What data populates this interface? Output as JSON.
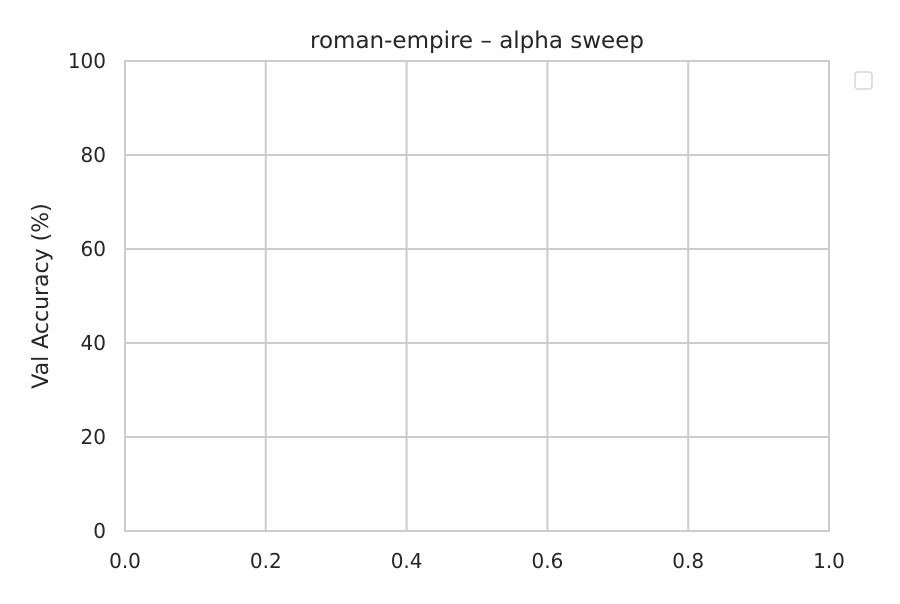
{
  "chart_data": {
    "type": "line",
    "title": "roman-empire – alpha sweep",
    "xlabel": "",
    "ylabel": "Val Accuracy (%)",
    "xlim": [
      0.0,
      1.0
    ],
    "ylim": [
      0,
      100
    ],
    "xticks": [
      0.0,
      0.2,
      0.4,
      0.6,
      0.8,
      1.0
    ],
    "xtick_labels": [
      "0.0",
      "0.2",
      "0.4",
      "0.6",
      "0.8",
      "1.0"
    ],
    "yticks": [
      0,
      20,
      40,
      60,
      80,
      100
    ],
    "ytick_labels": [
      "0",
      "20",
      "40",
      "60",
      "80",
      "100"
    ],
    "series": [],
    "grid": true,
    "legend": {
      "placement": "outside top-right",
      "entries": []
    },
    "colors": {
      "grid": "#cccccc",
      "frame": "#cccccc",
      "background": "#ffffff",
      "text": "#262626"
    }
  }
}
